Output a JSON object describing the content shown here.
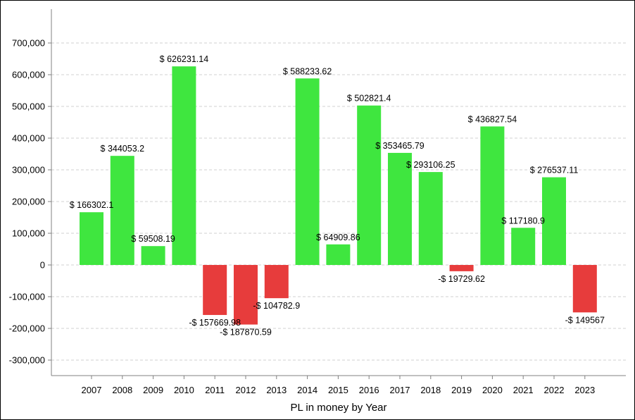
{
  "chart_data": {
    "type": "bar",
    "title": "",
    "xlabel": "PL in money by Year",
    "ylabel": "",
    "ylim": [
      -350000,
      750000
    ],
    "yticks": [
      -300000,
      -200000,
      -100000,
      0,
      100000,
      200000,
      300000,
      400000,
      500000,
      600000,
      700000
    ],
    "ytick_labels": [
      "-300,000",
      "-200,000",
      "-100,000",
      "0",
      "100,000",
      "200,000",
      "300,000",
      "400,000",
      "500,000",
      "600,000",
      "700,000"
    ],
    "grid": true,
    "categories": [
      "2007",
      "2008",
      "2009",
      "2010",
      "2011",
      "2012",
      "2013",
      "2014",
      "2015",
      "2016",
      "2017",
      "2018",
      "2019",
      "2020",
      "2021",
      "2022",
      "2023"
    ],
    "values": [
      166302.1,
      344053.2,
      59508.19,
      626231.14,
      -157669.98,
      -187870.59,
      -104782.9,
      588233.62,
      64909.86,
      502821.4,
      353465.79,
      293106.25,
      -19729.62,
      436827.54,
      117180.9,
      276537.11,
      -149567
    ],
    "data_labels": [
      "$ 166302.1",
      "$ 344053.2",
      "$ 59508.19",
      "$ 626231.14",
      "-$ 157669.98",
      "-$ 187870.59",
      "-$ 104782.9",
      "$ 588233.62",
      "$ 64909.86",
      "$ 502821.4",
      "$ 353465.79",
      "$ 293106.25",
      "-$ 19729.62",
      "$ 436827.54",
      "$ 117180.9",
      "$ 276537.11",
      "-$ 149567"
    ],
    "colors": {
      "positive": "#3fe63f",
      "negative": "#e73c3c",
      "grid": "#d0d0d0",
      "axis": "#808080"
    }
  }
}
